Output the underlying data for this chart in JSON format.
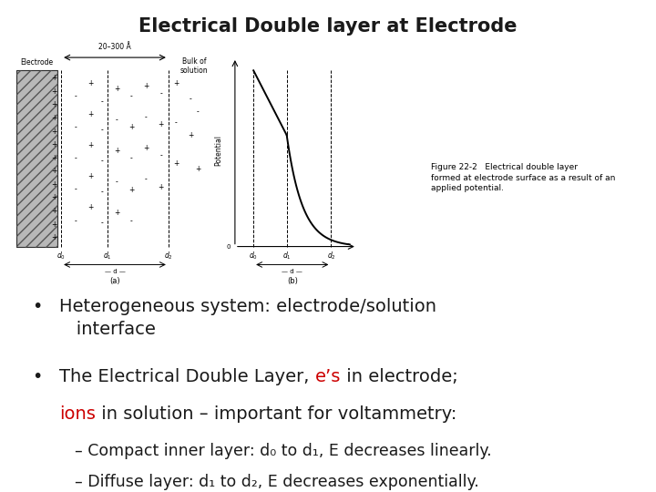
{
  "title": "Electrical Double layer at Electrode",
  "title_fontsize": 15,
  "title_fontweight": "bold",
  "background_color": "#ffffff",
  "red_color": "#cc0000",
  "text_color": "#1a1a1a",
  "bullet_fontsize": 14,
  "sub_fontsize": 12.5,
  "cap_fontsize": 6.5,
  "fig_bg": "#f5f5f0",
  "electrode_color": "#b8b8b8",
  "ions_a": [
    [
      1.7,
      6.3,
      "-"
    ],
    [
      1.7,
      5.1,
      "-"
    ],
    [
      1.7,
      3.9,
      "-"
    ],
    [
      1.7,
      2.7,
      "-"
    ],
    [
      1.7,
      1.5,
      "-"
    ],
    [
      2.1,
      6.8,
      "+"
    ],
    [
      2.1,
      5.6,
      "+"
    ],
    [
      2.1,
      4.4,
      "+"
    ],
    [
      2.1,
      3.2,
      "+"
    ],
    [
      2.1,
      2.0,
      "+"
    ],
    [
      2.4,
      6.1,
      "-"
    ],
    [
      2.4,
      5.0,
      "-"
    ],
    [
      2.4,
      3.8,
      "-"
    ],
    [
      2.4,
      2.6,
      "-"
    ],
    [
      2.4,
      1.4,
      "-"
    ],
    [
      2.8,
      6.6,
      "+"
    ],
    [
      2.8,
      5.4,
      "-"
    ],
    [
      2.8,
      4.2,
      "+"
    ],
    [
      2.8,
      3.0,
      "-"
    ],
    [
      2.8,
      1.8,
      "+"
    ],
    [
      3.2,
      6.3,
      "-"
    ],
    [
      3.2,
      5.1,
      "+"
    ],
    [
      3.2,
      3.9,
      "-"
    ],
    [
      3.2,
      2.7,
      "+"
    ],
    [
      3.2,
      1.5,
      "-"
    ],
    [
      3.6,
      6.7,
      "+"
    ],
    [
      3.6,
      5.5,
      "-"
    ],
    [
      3.6,
      4.3,
      "+"
    ],
    [
      3.6,
      3.1,
      "-"
    ],
    [
      4.0,
      6.4,
      "-"
    ],
    [
      4.0,
      5.2,
      "+"
    ],
    [
      4.0,
      4.0,
      "-"
    ],
    [
      4.0,
      2.8,
      "+"
    ],
    [
      4.4,
      6.8,
      "+"
    ],
    [
      4.4,
      5.3,
      "-"
    ],
    [
      4.4,
      3.7,
      "+"
    ],
    [
      4.8,
      6.2,
      "-"
    ],
    [
      4.8,
      4.8,
      "+"
    ],
    [
      5.0,
      5.7,
      "-"
    ],
    [
      5.0,
      3.5,
      "+"
    ]
  ]
}
